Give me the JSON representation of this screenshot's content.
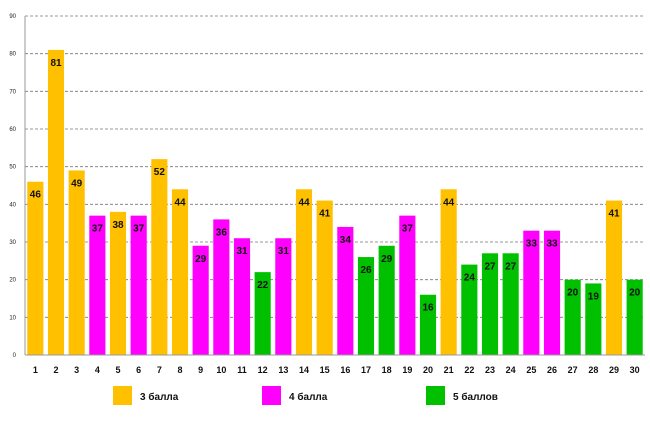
{
  "chart_data": {
    "type": "bar",
    "title": "",
    "xlabel": "",
    "ylabel": "",
    "ylim": [
      0,
      90
    ],
    "yticks": [
      "0",
      "10",
      "20",
      "30",
      "40",
      "50",
      "60",
      "70",
      "80",
      "90"
    ],
    "grid": true,
    "categories": [
      "1",
      "2",
      "3",
      "4",
      "5",
      "6",
      "7",
      "8",
      "9",
      "10",
      "11",
      "12",
      "13",
      "14",
      "15",
      "16",
      "17",
      "18",
      "19",
      "20",
      "21",
      "22",
      "23",
      "24",
      "25",
      "26",
      "27",
      "28",
      "29",
      "30"
    ],
    "values": [
      46,
      81,
      49,
      37,
      38,
      37,
      52,
      44,
      29,
      36,
      31,
      22,
      31,
      44,
      41,
      34,
      26,
      29,
      37,
      16,
      44,
      24,
      27,
      27,
      33,
      33,
      20,
      19,
      41,
      20
    ],
    "groups": [
      0,
      0,
      0,
      1,
      0,
      1,
      0,
      0,
      1,
      1,
      1,
      2,
      1,
      0,
      0,
      1,
      2,
      2,
      1,
      2,
      0,
      2,
      2,
      2,
      1,
      1,
      2,
      2,
      0,
      2
    ],
    "legend": [
      {
        "label": "3 балла",
        "color": "#FFC000"
      },
      {
        "label": "4 балла",
        "color": "#FF00FF"
      },
      {
        "label": "5 баллов",
        "color": "#00C000"
      }
    ],
    "legend_position": "bottom"
  }
}
